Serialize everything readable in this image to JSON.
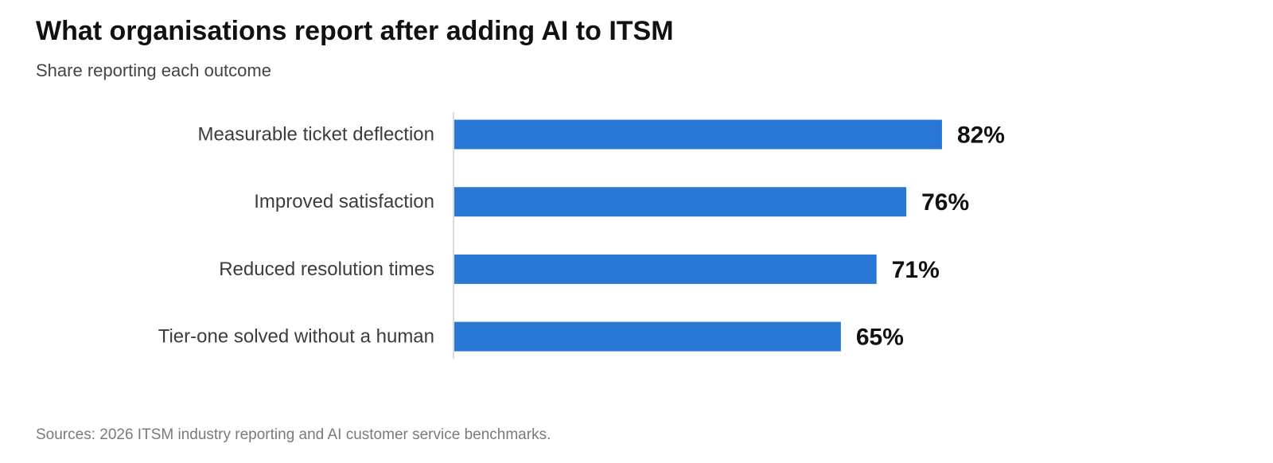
{
  "chart_data": {
    "type": "bar",
    "orientation": "horizontal",
    "title": "What organisations report after adding AI to ITSM",
    "subtitle": "Share reporting each outcome",
    "categories": [
      "Measurable ticket deflection",
      "Improved satisfaction",
      "Reduced resolution times",
      "Tier-one solved without a human"
    ],
    "values": [
      82,
      76,
      71,
      65
    ],
    "value_labels": [
      "82%",
      "76%",
      "71%",
      "65%"
    ],
    "unit": "%",
    "xlim": [
      0,
      100
    ],
    "grid": false,
    "legend": "none",
    "bar_color": "#2a78d6",
    "source": "Sources: 2026 ITSM industry reporting and AI customer service benchmarks."
  }
}
